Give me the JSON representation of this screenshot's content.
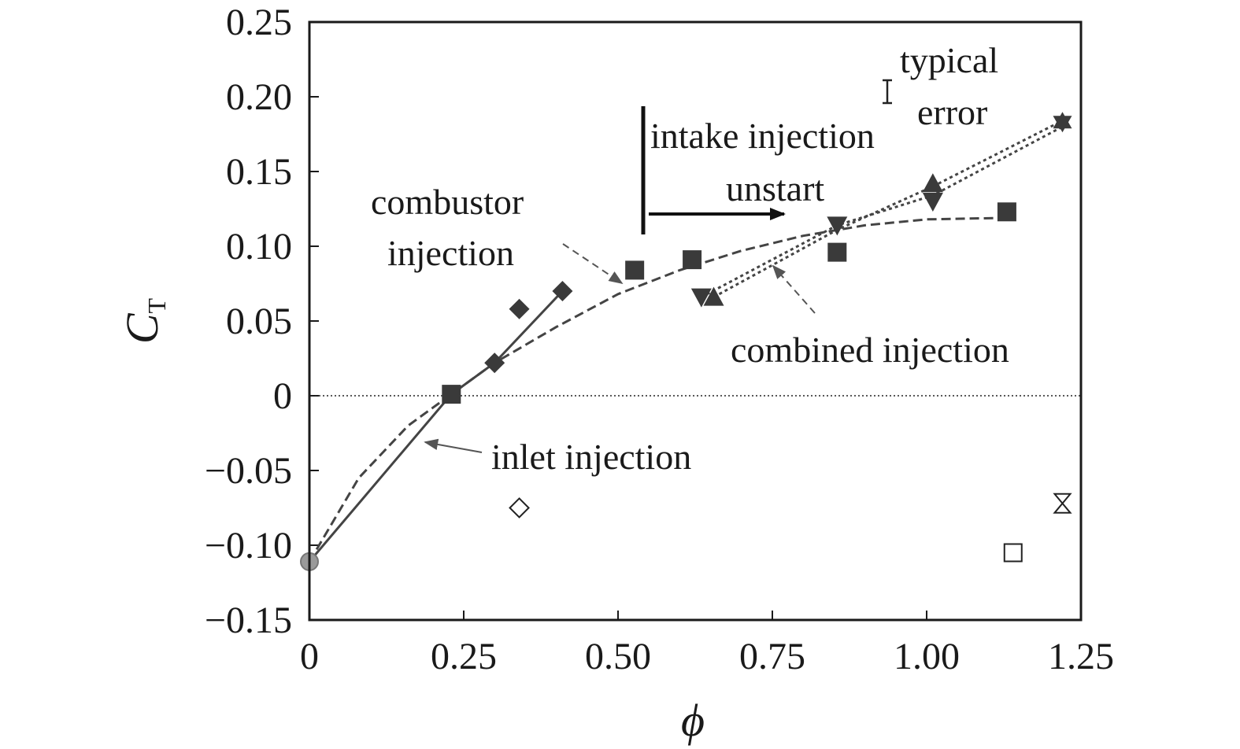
{
  "chart_data": {
    "type": "scatter",
    "xlabel": "ϕ",
    "ylabel": "C",
    "ylabel_subscript": "T",
    "xlim": [
      0,
      1.25
    ],
    "ylim": [
      -0.15,
      0.25
    ],
    "x_ticks": [
      0,
      0.25,
      0.5,
      0.75,
      1.0,
      1.25
    ],
    "x_tick_labels": [
      "0",
      "0.25",
      "0.50",
      "0.75",
      "1.00",
      "1.25"
    ],
    "y_ticks": [
      -0.15,
      -0.1,
      -0.05,
      0,
      0.05,
      0.1,
      0.15,
      0.2,
      0.25
    ],
    "y_tick_labels": [
      "−0.15",
      "−0.10",
      "−0.05",
      "0",
      "0.05",
      "0.10",
      "0.15",
      "0.20",
      "0.25"
    ],
    "grid": false,
    "legend": "none",
    "zero_line": true,
    "series": [
      {
        "marker": "circle-gray",
        "points": [
          [
            0.0,
            -0.111
          ]
        ]
      },
      {
        "marker": "diamond-filled",
        "points": [
          [
            0.3,
            0.022
          ],
          [
            0.34,
            0.058
          ],
          [
            0.41,
            0.07
          ]
        ]
      },
      {
        "marker": "square-filled",
        "points": [
          [
            0.23,
            0.001
          ],
          [
            0.527,
            0.084
          ],
          [
            0.62,
            0.091
          ],
          [
            0.855,
            0.096
          ],
          [
            1.13,
            0.123
          ]
        ]
      },
      {
        "marker": "triangle-down-filled",
        "points": [
          [
            0.635,
            0.066
          ],
          [
            0.855,
            0.114
          ],
          [
            1.01,
            0.13
          ]
        ]
      },
      {
        "marker": "triangle-up-filled",
        "points": [
          [
            0.655,
            0.066
          ],
          [
            1.01,
            0.142
          ]
        ]
      },
      {
        "marker": "star-filled",
        "points": [
          [
            1.22,
            0.183
          ]
        ]
      },
      {
        "marker": "diamond-open",
        "points": [
          [
            0.34,
            -0.075
          ]
        ]
      },
      {
        "marker": "square-open",
        "points": [
          [
            1.14,
            -0.105
          ]
        ]
      },
      {
        "marker": "hourglass-open",
        "points": [
          [
            1.22,
            -0.072
          ]
        ]
      }
    ],
    "curves": [
      {
        "style": "solid",
        "points": [
          [
            0.0,
            -0.111
          ],
          [
            0.23,
            0.001
          ],
          [
            0.3,
            0.022
          ],
          [
            0.41,
            0.07
          ]
        ]
      },
      {
        "style": "dashed",
        "points": [
          [
            0.0,
            -0.111
          ],
          [
            0.08,
            -0.055
          ],
          [
            0.16,
            -0.02
          ],
          [
            0.23,
            0.001
          ],
          [
            0.3,
            0.022
          ],
          [
            0.4,
            0.046
          ],
          [
            0.5,
            0.068
          ],
          [
            0.6,
            0.084
          ],
          [
            0.7,
            0.097
          ],
          [
            0.8,
            0.107
          ],
          [
            0.9,
            0.114
          ],
          [
            1.0,
            0.118
          ],
          [
            1.13,
            0.119
          ]
        ]
      },
      {
        "style": "dotted",
        "points": [
          [
            0.635,
            0.066
          ],
          [
            0.855,
            0.114
          ],
          [
            1.01,
            0.134
          ],
          [
            1.22,
            0.18
          ]
        ]
      },
      {
        "style": "dotted",
        "points": [
          [
            0.655,
            0.066
          ],
          [
            0.855,
            0.111
          ],
          [
            1.01,
            0.14
          ],
          [
            1.22,
            0.184
          ]
        ]
      }
    ],
    "annotations": {
      "typical": "typical",
      "error": "error",
      "intake": "intake injection",
      "unstart": "unstart",
      "combustor1": "combustor",
      "combustor2": "injection",
      "combined": "combined injection",
      "inlet": "inlet injection"
    }
  }
}
